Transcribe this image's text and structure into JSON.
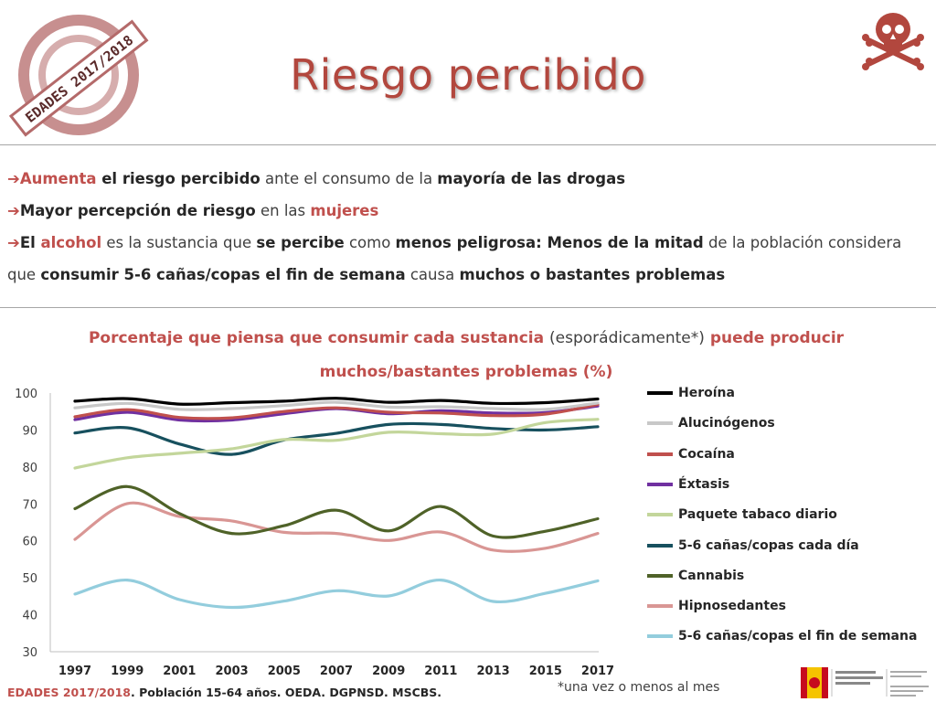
{
  "header": {
    "title": "Riesgo percibido",
    "stamp_text": "EDADES 2017/2018"
  },
  "bullets": [
    {
      "segments": [
        {
          "t": "Aumenta",
          "s": "red"
        },
        {
          "t": " el riesgo percibido",
          "s": "bold"
        },
        {
          "t": " ante el consumo de la ",
          "s": "normal"
        },
        {
          "t": "mayoría de las drogas",
          "s": "bold"
        }
      ]
    },
    {
      "segments": [
        {
          "t": "Mayor percepción de riesgo",
          "s": "bold"
        },
        {
          "t": " en las ",
          "s": "normal"
        },
        {
          "t": "mujeres",
          "s": "red"
        }
      ]
    },
    {
      "segments": [
        {
          "t": "El ",
          "s": "bold"
        },
        {
          "t": "alcohol",
          "s": "red"
        },
        {
          "t": " es la sustancia que ",
          "s": "normal"
        },
        {
          "t": "se percibe",
          "s": "bold"
        },
        {
          "t": " como ",
          "s": "normal"
        },
        {
          "t": "menos peligrosa: Menos de la mitad",
          "s": "bold"
        },
        {
          "t": " de la población considera que ",
          "s": "normal"
        },
        {
          "t": "consumir 5-6 cañas/copas el fin de semana",
          "s": "bold"
        },
        {
          "t": " causa ",
          "s": "normal"
        },
        {
          "t": "muchos o bastantes problemas",
          "s": "bold"
        }
      ]
    }
  ],
  "chart_title": {
    "part1": "Porcentaje que piensa que consumir cada sustancia ",
    "part2": "(esporádicamente*)",
    "part3": " puede producir muchos/bastantes problemas (%)"
  },
  "chart_data": {
    "type": "line",
    "title": "Porcentaje que piensa que consumir cada sustancia (esporádicamente*) puede producir muchos/bastantes problemas (%)",
    "x": [
      "1997",
      "1999",
      "2001",
      "2003",
      "2005",
      "2007",
      "2009",
      "2011",
      "2013",
      "2015",
      "2017"
    ],
    "ylim": [
      30,
      100
    ],
    "yticks": [
      30,
      40,
      50,
      60,
      70,
      80,
      90,
      100
    ],
    "grid": false,
    "legend_position": "right",
    "series": [
      {
        "name": "Heroína",
        "color": "#000000",
        "values": [
          97.8,
          98.5,
          97.0,
          97.4,
          97.8,
          98.6,
          97.5,
          98.0,
          97.2,
          97.4,
          98.4
        ]
      },
      {
        "name": "Alucinógenos",
        "color": "#c8c8c8",
        "values": [
          96.0,
          97.2,
          95.6,
          95.8,
          96.6,
          97.5,
          96.2,
          96.3,
          95.8,
          95.6,
          97.3
        ]
      },
      {
        "name": "Cocaína",
        "color": "#c0504d",
        "values": [
          93.6,
          95.5,
          93.4,
          93.3,
          95.0,
          96.0,
          94.8,
          94.6,
          93.9,
          94.3,
          96.9
        ]
      },
      {
        "name": "Éxtasis",
        "color": "#7030a0",
        "values": [
          92.8,
          94.8,
          92.7,
          92.7,
          94.4,
          95.8,
          94.4,
          95.2,
          94.6,
          94.7,
          96.5
        ]
      },
      {
        "name": "Paquete tabaco diario",
        "color": "#c3d69b",
        "values": [
          79.7,
          82.5,
          83.7,
          84.9,
          87.4,
          87.2,
          89.4,
          89.0,
          88.9,
          92.0,
          92.9
        ]
      },
      {
        "name": "5-6 cañas/copas cada día",
        "color": "#17505e",
        "values": [
          89.2,
          90.6,
          86.2,
          83.4,
          87.3,
          89.1,
          91.5,
          91.5,
          90.4,
          90.0,
          90.9
        ]
      },
      {
        "name": "Cannabis",
        "color": "#4f6228",
        "values": [
          68.7,
          74.7,
          67.4,
          62.0,
          64.1,
          68.3,
          62.7,
          69.3,
          61.3,
          62.6,
          66.0
        ]
      },
      {
        "name": "Hipnosedantes",
        "color": "#d99694",
        "values": [
          60.4,
          70.1,
          66.6,
          65.4,
          62.3,
          62.0,
          60.1,
          62.4,
          57.5,
          58.0,
          62.0
        ]
      },
      {
        "name": "5-6 cañas/copas el fin de semana",
        "color": "#93cddd",
        "values": [
          45.6,
          49.4,
          44.1,
          42.0,
          43.7,
          46.5,
          45.1,
          49.4,
          43.6,
          45.8,
          49.2
        ]
      }
    ]
  },
  "footnote": "*una vez o menos al mes",
  "source": {
    "bold_red": "EDADES 2017/2018",
    "rest": ". Población 15-64 años. OEDA. DGPNSD. MSCBS."
  }
}
